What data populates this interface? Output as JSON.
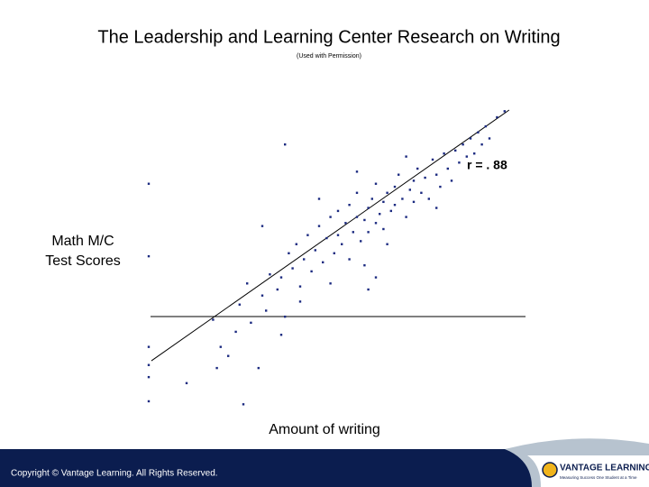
{
  "chart_data": {
    "type": "scatter",
    "title": "The Leadership and Learning Center Research on Writing",
    "subtitle": "(Used with Permission)",
    "x_label": "Amount of writing",
    "y_label": [
      "Math M/C",
      "Test Scores"
    ],
    "annotation": "r = . 88",
    "color": "#1b2a80",
    "xlim": [
      0,
      100
    ],
    "ylim": [
      0,
      100
    ],
    "x": [
      0,
      0,
      0,
      0,
      0,
      0,
      10,
      25,
      18,
      19,
      21,
      23,
      17,
      24,
      27,
      29,
      30,
      31,
      32,
      26,
      34,
      35,
      36,
      37,
      38,
      39,
      40,
      41,
      42,
      43,
      44,
      45,
      46,
      47,
      48,
      49,
      50,
      50,
      51,
      52,
      53,
      53,
      54,
      55,
      55,
      56,
      57,
      58,
      58,
      59,
      60,
      60,
      61,
      62,
      62,
      63,
      64,
      65,
      65,
      66,
      67,
      68,
      69,
      70,
      70,
      71,
      72,
      73,
      74,
      75,
      76,
      77,
      78,
      79,
      80,
      81,
      82,
      83,
      84,
      85,
      86,
      87,
      88,
      89,
      90,
      92,
      94,
      63,
      57,
      48,
      40,
      35,
      60,
      45,
      55,
      68,
      36,
      30,
      58,
      76
    ],
    "y": [
      3,
      11,
      15,
      21,
      51,
      75,
      9,
      2,
      14,
      21,
      18,
      26,
      30,
      35,
      29,
      14,
      38,
      33,
      45,
      42,
      40,
      44,
      31,
      52,
      47,
      55,
      41,
      50,
      58,
      46,
      53,
      61,
      49,
      57,
      64,
      52,
      58,
      66,
      55,
      62,
      50,
      68,
      59,
      64,
      72,
      56,
      63,
      67,
      59,
      70,
      62,
      75,
      65,
      69,
      60,
      72,
      66,
      74,
      68,
      78,
      70,
      64,
      73,
      76,
      69,
      80,
      72,
      77,
      70,
      83,
      78,
      74,
      85,
      80,
      76,
      86,
      82,
      88,
      84,
      90,
      85,
      92,
      88,
      94,
      90,
      97,
      99,
      55,
      48,
      42,
      36,
      25,
      44,
      70,
      79,
      84,
      88,
      61,
      40,
      67
    ],
    "trend_line": {
      "x": [
        0.7,
        95.2
      ],
      "y": [
        16.4,
        99.4
      ]
    }
  },
  "footer": {
    "copyright": "Copyright © Vantage Learning. All Rights Reserved.",
    "logo": "VANTAGE LEARNING",
    "tagline": "Measuring Success One Student at a Time"
  }
}
